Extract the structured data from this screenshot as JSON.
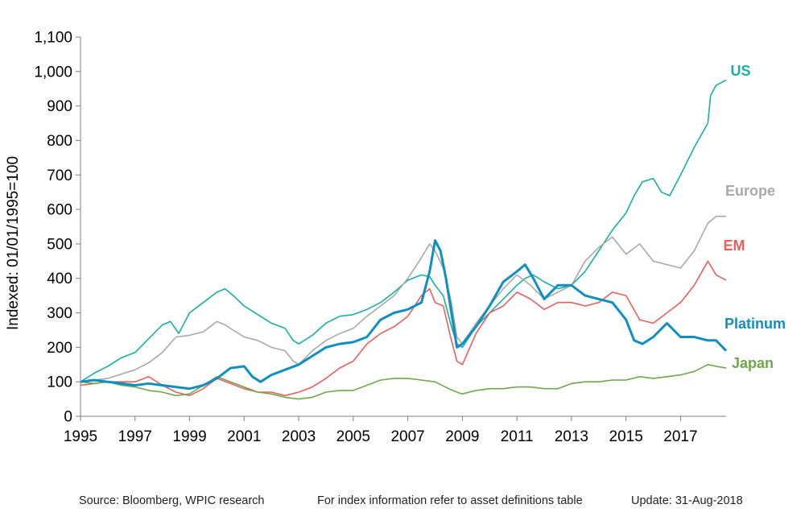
{
  "chart_data": {
    "type": "line",
    "title": "",
    "ylabel": "Indexed: 01/01/1995=100",
    "xlabel": "",
    "ylim": [
      0,
      1100
    ],
    "xlim": [
      1995,
      2018.67
    ],
    "y_ticks": [
      0,
      100,
      200,
      300,
      400,
      500,
      600,
      700,
      800,
      900,
      1000,
      1100
    ],
    "y_tick_labels": [
      "0",
      "100",
      "200",
      "300",
      "400",
      "500",
      "600",
      "700",
      "800",
      "900",
      "1,000",
      "1,100"
    ],
    "x_ticks": [
      1995,
      1997,
      1999,
      2001,
      2003,
      2005,
      2007,
      2009,
      2011,
      2013,
      2015,
      2017
    ],
    "x_tick_labels": [
      "1995",
      "1997",
      "1999",
      "2001",
      "2003",
      "2005",
      "2007",
      "2009",
      "2011",
      "2013",
      "2015",
      "2017"
    ],
    "grid": false,
    "legend": "inline labels at right end of each series",
    "series": [
      {
        "name": "US",
        "color": "#1aafa4",
        "width": 1.6,
        "x": [
          1995,
          1995.5,
          1996,
          1996.5,
          1997,
          1997.5,
          1998,
          1998.3,
          1998.6,
          1999,
          1999.5,
          2000,
          2000.3,
          2000.6,
          2001,
          2001.5,
          2002,
          2002.5,
          2002.8,
          2003,
          2003.5,
          2004,
          2004.5,
          2005,
          2005.5,
          2006,
          2006.5,
          2007,
          2007.5,
          2007.8,
          2008,
          2008.3,
          2008.6,
          2008.8,
          2009,
          2009.5,
          2010,
          2010.5,
          2011,
          2011.3,
          2011.6,
          2012,
          2012.5,
          2013,
          2013.5,
          2014,
          2014.5,
          2015,
          2015.3,
          2015.6,
          2016,
          2016.3,
          2016.6,
          2017,
          2017.5,
          2018,
          2018.1,
          2018.3,
          2018.67
        ],
        "y": [
          100,
          125,
          145,
          170,
          185,
          225,
          265,
          275,
          240,
          300,
          330,
          360,
          370,
          350,
          320,
          295,
          270,
          255,
          220,
          210,
          235,
          270,
          290,
          295,
          310,
          330,
          360,
          395,
          410,
          405,
          380,
          350,
          260,
          210,
          200,
          260,
          300,
          340,
          380,
          400,
          410,
          390,
          370,
          380,
          420,
          480,
          540,
          590,
          640,
          680,
          690,
          650,
          640,
          700,
          780,
          850,
          930,
          960,
          975
        ]
      },
      {
        "name": "Europe",
        "color": "#a9a9a9",
        "width": 1.6,
        "x": [
          1995,
          1996,
          1997,
          1997.5,
          1998,
          1998.5,
          1999,
          1999.5,
          2000,
          2000.3,
          2000.6,
          2001,
          2001.5,
          2002,
          2002.5,
          2002.8,
          2003,
          2003.5,
          2004,
          2004.5,
          2005,
          2005.5,
          2006,
          2006.5,
          2007,
          2007.5,
          2007.8,
          2008,
          2008.3,
          2008.6,
          2008.8,
          2009,
          2009.5,
          2010,
          2010.5,
          2011,
          2011.5,
          2012,
          2012.5,
          2013,
          2013.5,
          2014,
          2014.5,
          2015,
          2015.5,
          2016,
          2016.5,
          2017,
          2017.5,
          2018,
          2018.3,
          2018.67
        ],
        "y": [
          100,
          110,
          135,
          155,
          185,
          230,
          235,
          245,
          275,
          265,
          250,
          230,
          220,
          200,
          190,
          160,
          150,
          190,
          220,
          240,
          255,
          290,
          320,
          350,
          400,
          460,
          500,
          480,
          430,
          330,
          230,
          210,
          270,
          320,
          370,
          410,
          380,
          340,
          360,
          380,
          450,
          490,
          520,
          470,
          500,
          450,
          440,
          430,
          480,
          560,
          580,
          580
        ]
      },
      {
        "name": "EM",
        "color": "#e8605e",
        "width": 1.6,
        "x": [
          1995,
          1996,
          1997,
          1997.5,
          1998,
          1998.5,
          1999,
          1999.5,
          2000,
          2000.5,
          2001,
          2001.5,
          2002,
          2002.5,
          2003,
          2003.5,
          2004,
          2004.5,
          2005,
          2005.5,
          2006,
          2006.5,
          2007,
          2007.5,
          2007.8,
          2008,
          2008.3,
          2008.6,
          2008.8,
          2009,
          2009.5,
          2010,
          2010.5,
          2011,
          2011.5,
          2012,
          2012.5,
          2013,
          2013.5,
          2014,
          2014.5,
          2015,
          2015.5,
          2016,
          2016.5,
          2017,
          2017.5,
          2018,
          2018.3,
          2018.67
        ],
        "y": [
          90,
          100,
          100,
          115,
          90,
          70,
          60,
          80,
          110,
          95,
          80,
          70,
          70,
          60,
          70,
          85,
          110,
          140,
          160,
          210,
          240,
          260,
          290,
          350,
          370,
          330,
          320,
          220,
          160,
          150,
          240,
          300,
          320,
          360,
          340,
          310,
          330,
          330,
          320,
          330,
          360,
          350,
          280,
          270,
          300,
          330,
          380,
          450,
          410,
          395
        ]
      },
      {
        "name": "Platinum",
        "color": "#0f8fbf",
        "width": 3,
        "x": [
          1995,
          1995.5,
          1996,
          1996.5,
          1997,
          1997.5,
          1998,
          1998.5,
          1999,
          1999.5,
          2000,
          2000.5,
          2001,
          2001.3,
          2001.6,
          2002,
          2002.5,
          2003,
          2003.5,
          2004,
          2004.5,
          2005,
          2005.5,
          2006,
          2006.5,
          2007,
          2007.5,
          2007.8,
          2008,
          2008.2,
          2008.4,
          2008.6,
          2008.8,
          2009,
          2009.5,
          2010,
          2010.5,
          2011,
          2011.3,
          2011.6,
          2012,
          2012.5,
          2013,
          2013.5,
          2014,
          2014.5,
          2015,
          2015.3,
          2015.6,
          2016,
          2016.5,
          2017,
          2017.5,
          2018,
          2018.3,
          2018.67
        ],
        "y": [
          100,
          105,
          100,
          95,
          90,
          95,
          90,
          85,
          80,
          90,
          110,
          140,
          145,
          115,
          100,
          120,
          135,
          150,
          175,
          200,
          210,
          215,
          230,
          280,
          300,
          310,
          330,
          420,
          510,
          480,
          400,
          300,
          200,
          210,
          260,
          320,
          390,
          420,
          440,
          400,
          340,
          380,
          380,
          350,
          340,
          330,
          280,
          220,
          210,
          230,
          270,
          230,
          230,
          220,
          220,
          190
        ]
      },
      {
        "name": "Japan",
        "color": "#6fa84a",
        "width": 1.6,
        "x": [
          1995,
          1995.5,
          1996,
          1996.5,
          1997,
          1997.5,
          1998,
          1998.5,
          1999,
          1999.5,
          2000,
          2000.5,
          2001,
          2001.5,
          2002,
          2002.5,
          2003,
          2003.5,
          2004,
          2004.5,
          2005,
          2005.5,
          2006,
          2006.5,
          2007,
          2007.5,
          2008,
          2008.5,
          2008.8,
          2009,
          2009.5,
          2010,
          2010.5,
          2011,
          2011.5,
          2012,
          2012.5,
          2013,
          2013.5,
          2014,
          2014.5,
          2015,
          2015.5,
          2016,
          2016.5,
          2017,
          2017.5,
          2018,
          2018.3,
          2018.67
        ],
        "y": [
          100,
          95,
          100,
          90,
          85,
          75,
          70,
          60,
          65,
          90,
          115,
          100,
          85,
          70,
          65,
          55,
          50,
          55,
          70,
          75,
          75,
          90,
          105,
          110,
          110,
          105,
          100,
          80,
          70,
          65,
          75,
          80,
          80,
          85,
          85,
          80,
          80,
          95,
          100,
          100,
          105,
          105,
          115,
          110,
          115,
          120,
          130,
          150,
          145,
          140
        ]
      }
    ]
  },
  "footer": {
    "source": "Source: Bloomberg, WPIC research",
    "note": "For index information refer to asset definitions table",
    "update": "Update: 31-Aug-2018"
  }
}
